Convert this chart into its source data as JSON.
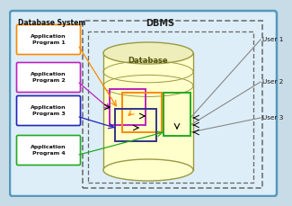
{
  "bg_outer": "#c8dce8",
  "bg_db_system": "#ddeef8",
  "dashed_border_color": "#666666",
  "title_db_system": "Database System",
  "title_dbms": "DBMS",
  "title_database": "Database",
  "app_programs": [
    "Application\nProgram 1",
    "Application\nProgram 2",
    "Application\nProgram 3",
    "Application\nProgram 4"
  ],
  "app_colors": [
    "#FF8800",
    "#BB22BB",
    "#2222BB",
    "#22AA22"
  ],
  "users": [
    "User 1",
    "User 2",
    "User 3"
  ],
  "cylinder_fill": "#FFFFCC",
  "cylinder_top_fill": "#EEEEBB",
  "cylinder_edge": "#999944",
  "rect_colors": [
    "#BB22BB",
    "#FF8800",
    "#333388",
    "#22AA22"
  ],
  "line_color": "#888888"
}
